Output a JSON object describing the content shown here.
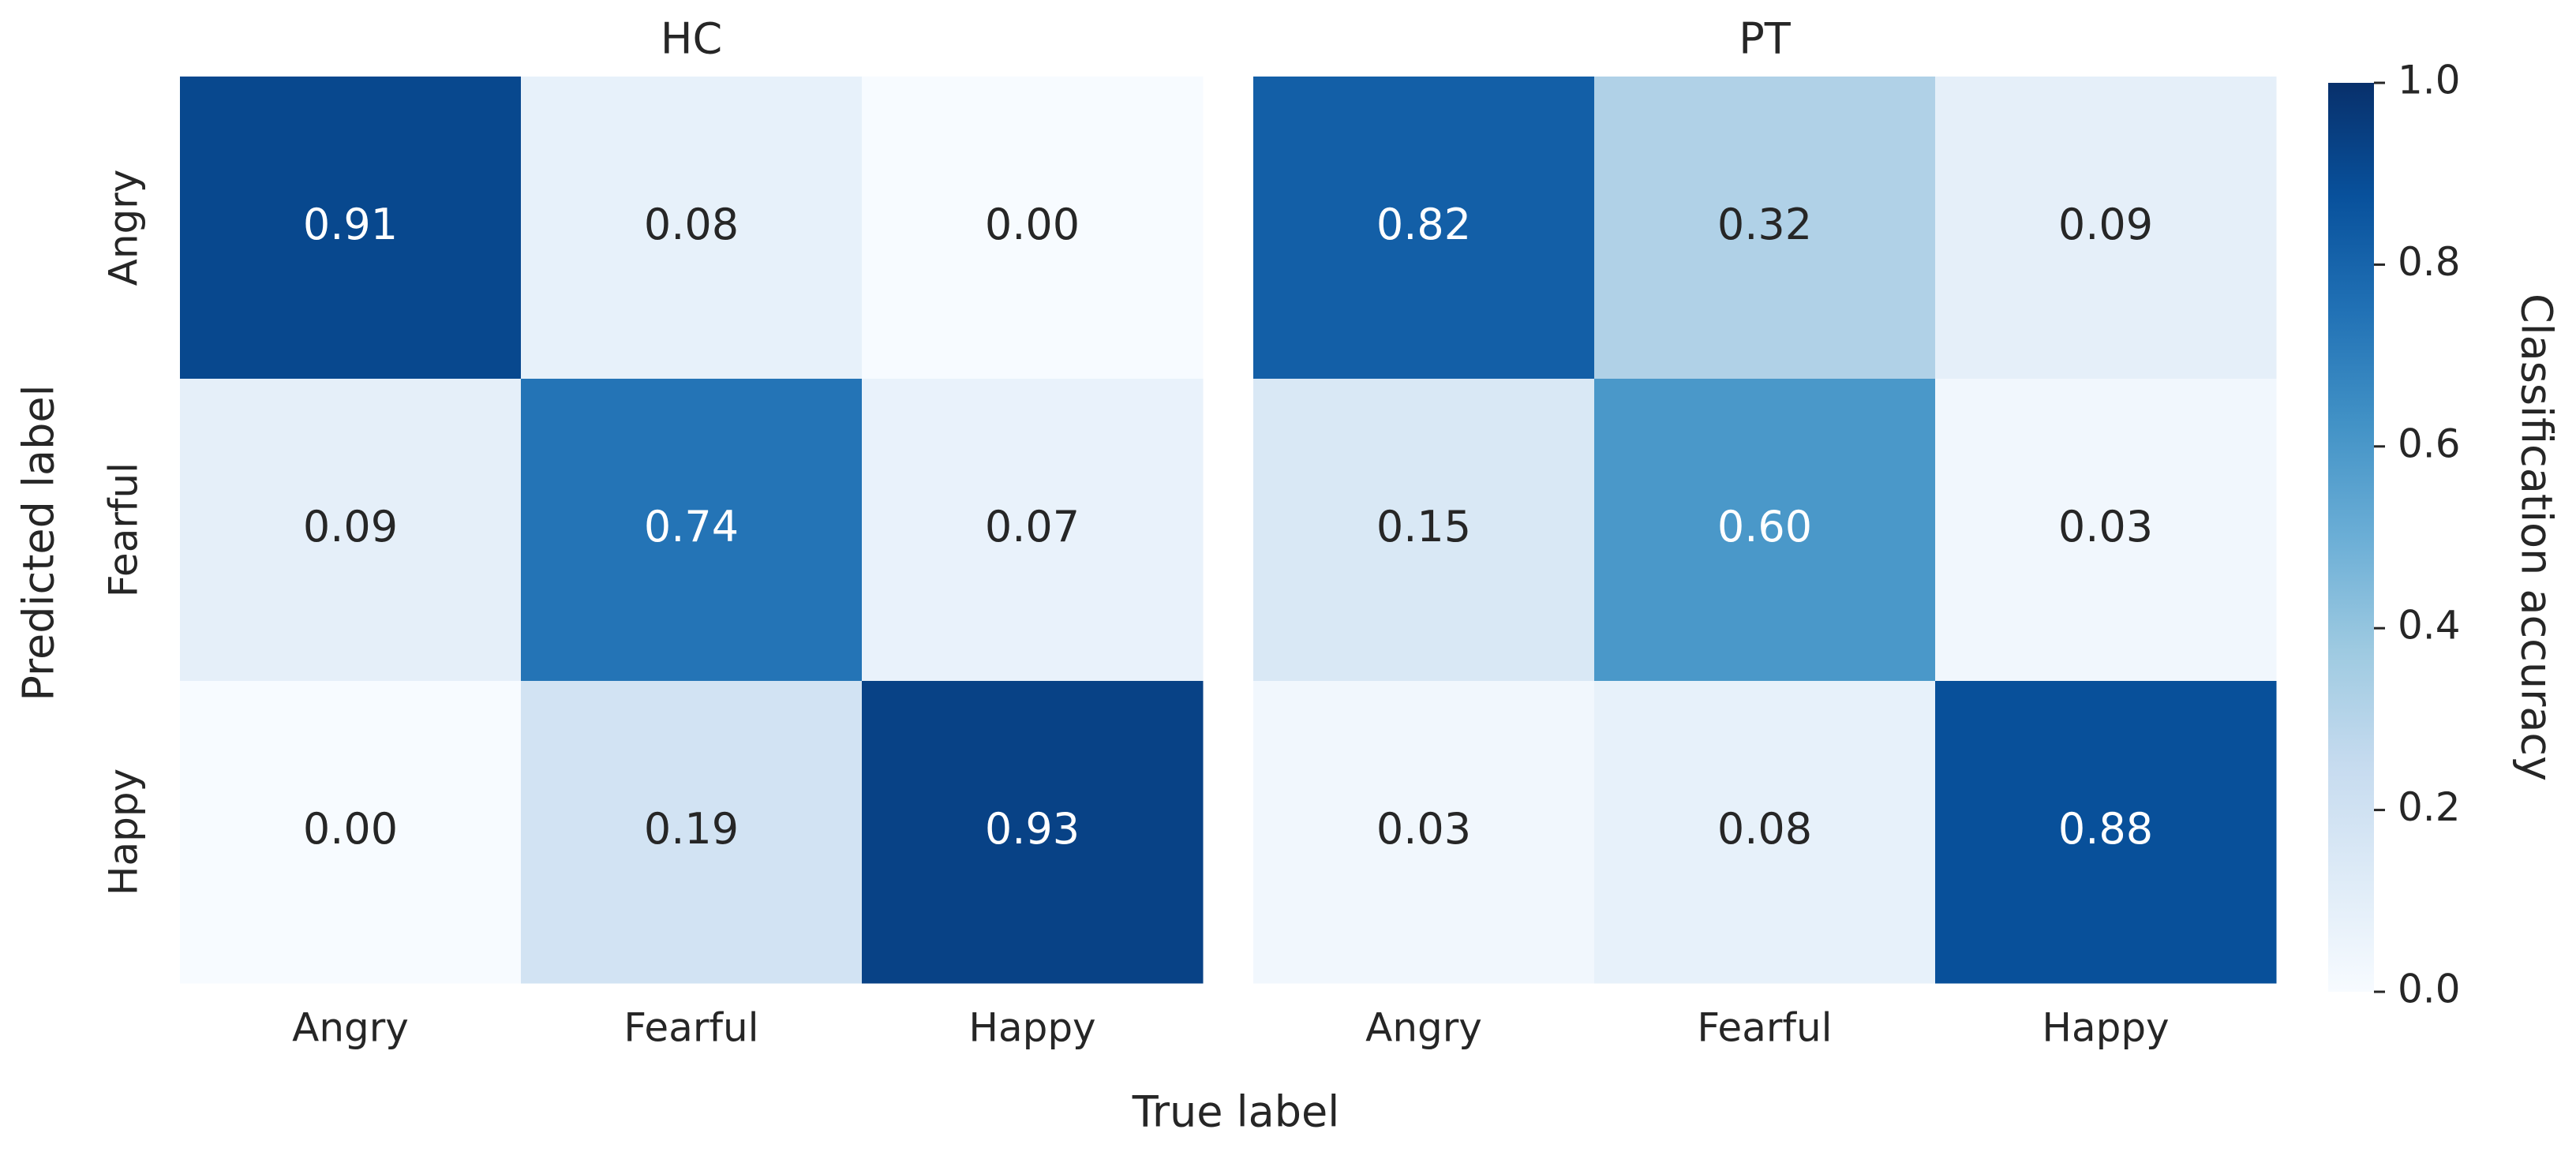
{
  "figure": {
    "xlabel": "True label",
    "ylabel": "Predicted label"
  },
  "colorbar": {
    "label": "Classification accuracy",
    "range": [
      0.0,
      1.0
    ],
    "ticks": [
      0.0,
      0.2,
      0.4,
      0.6,
      0.8,
      1.0
    ],
    "tick_labels": [
      "0.0",
      "0.2",
      "0.4",
      "0.6",
      "0.8",
      "1.0"
    ],
    "colormap": "Blues",
    "color_low": "#f7fbff",
    "color_high": "#08306b"
  },
  "chart_data": [
    {
      "type": "heatmap",
      "title": "HC",
      "x_categories": [
        "Angry",
        "Fearful",
        "Happy"
      ],
      "y_categories": [
        "Angry",
        "Fearful",
        "Happy"
      ],
      "values": [
        [
          0.91,
          0.08,
          0.0
        ],
        [
          0.09,
          0.74,
          0.07
        ],
        [
          0.0,
          0.19,
          0.93
        ]
      ],
      "value_labels": [
        [
          "0.91",
          "0.08",
          "0.00"
        ],
        [
          "0.09",
          "0.74",
          "0.07"
        ],
        [
          "0.00",
          "0.19",
          "0.93"
        ]
      ]
    },
    {
      "type": "heatmap",
      "title": "PT",
      "x_categories": [
        "Angry",
        "Fearful",
        "Happy"
      ],
      "y_categories": [
        "Angry",
        "Fearful",
        "Happy"
      ],
      "values": [
        [
          0.82,
          0.32,
          0.09
        ],
        [
          0.15,
          0.6,
          0.03
        ],
        [
          0.03,
          0.08,
          0.88
        ]
      ],
      "value_labels": [
        [
          "0.82",
          "0.32",
          "0.09"
        ],
        [
          "0.15",
          "0.60",
          "0.03"
        ],
        [
          "0.03",
          "0.08",
          "0.88"
        ]
      ]
    }
  ]
}
